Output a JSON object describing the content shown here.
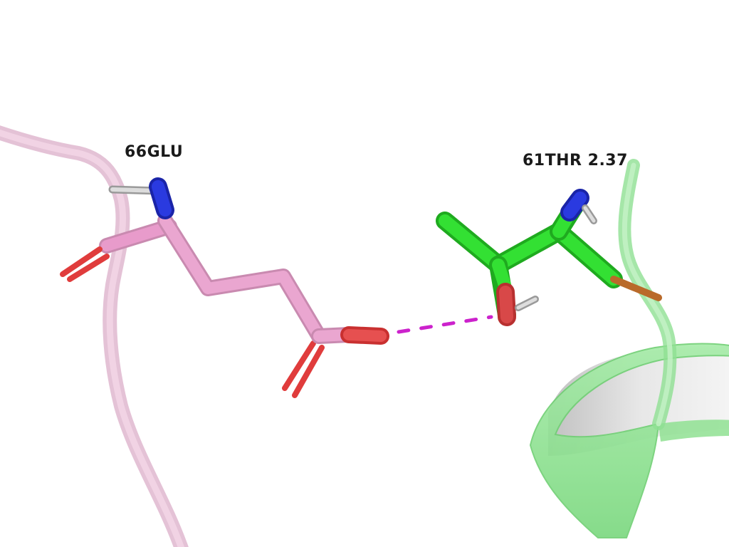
{
  "scene": {
    "labels": {
      "residue_a": "66GLU",
      "residue_b": "61THR 2.37"
    },
    "colors": {
      "background": "#ffffff",
      "chain_a_ribbon": "#e8b4d0",
      "chain_a_carbon": "#e89bcb",
      "chain_b_ribbon": "#86e08a",
      "chain_b_carbon": "#2ee02e",
      "nitrogen": "#1f2fd8",
      "oxygen": "#e03c3c",
      "hydrogen": "#d8d8d8",
      "hbond": "#cc22cc"
    },
    "icons": {
      "molecule": "stick-model",
      "interaction": "hydrogen-bond-dashes"
    }
  }
}
